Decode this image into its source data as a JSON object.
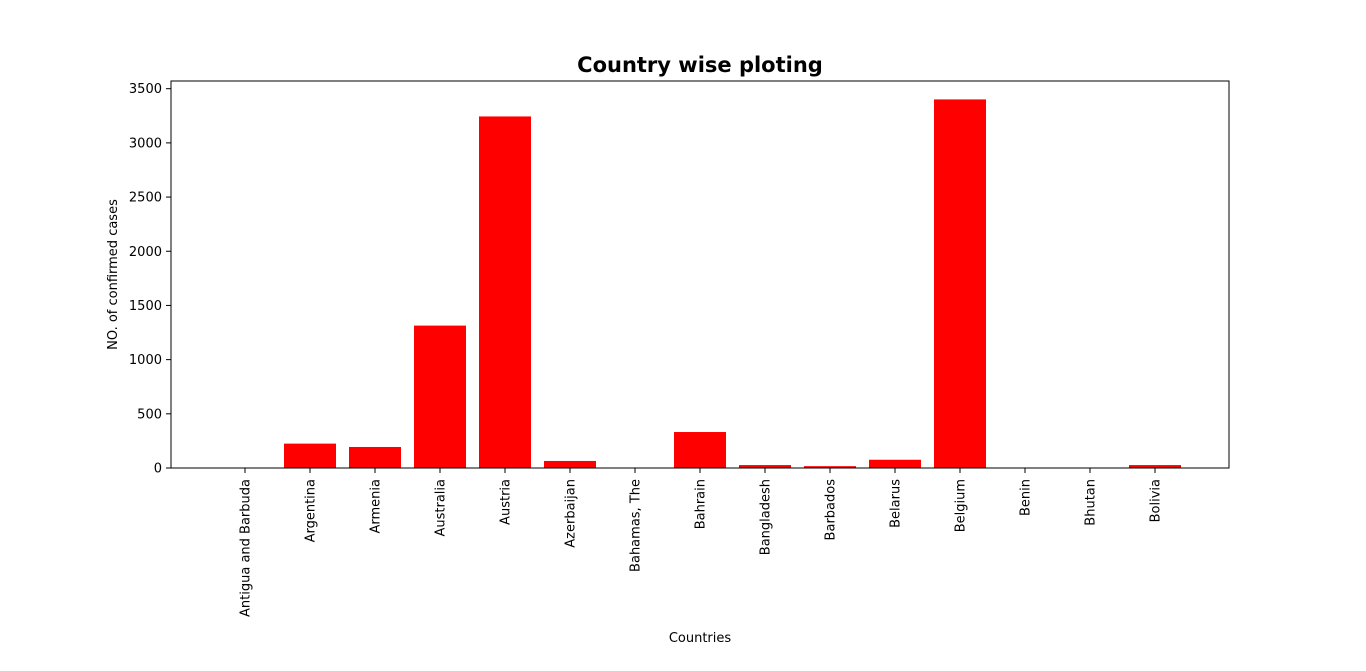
{
  "chart_data": {
    "type": "bar",
    "title": "Country wise ploting",
    "xlabel": "Countries",
    "ylabel": "NO. of confirmed cases",
    "categories": [
      "Antigua and Barbuda",
      "Argentina",
      "Armenia",
      "Australia",
      "Austria",
      "Azerbaijan",
      "Bahamas, The",
      "Bahrain",
      "Bangladesh",
      "Barbados",
      "Belarus",
      "Belgium",
      "Benin",
      "Bhutan",
      "Bolivia"
    ],
    "values": [
      1,
      225,
      194,
      1314,
      3244,
      65,
      3,
      332,
      27,
      17,
      76,
      3401,
      2,
      2,
      27
    ],
    "yticks": [
      0,
      500,
      1000,
      1500,
      2000,
      2500,
      3000,
      3500
    ],
    "ylim": [
      0,
      3571
    ],
    "bar_color": "#ff0000",
    "grid": false,
    "legend": "none"
  }
}
